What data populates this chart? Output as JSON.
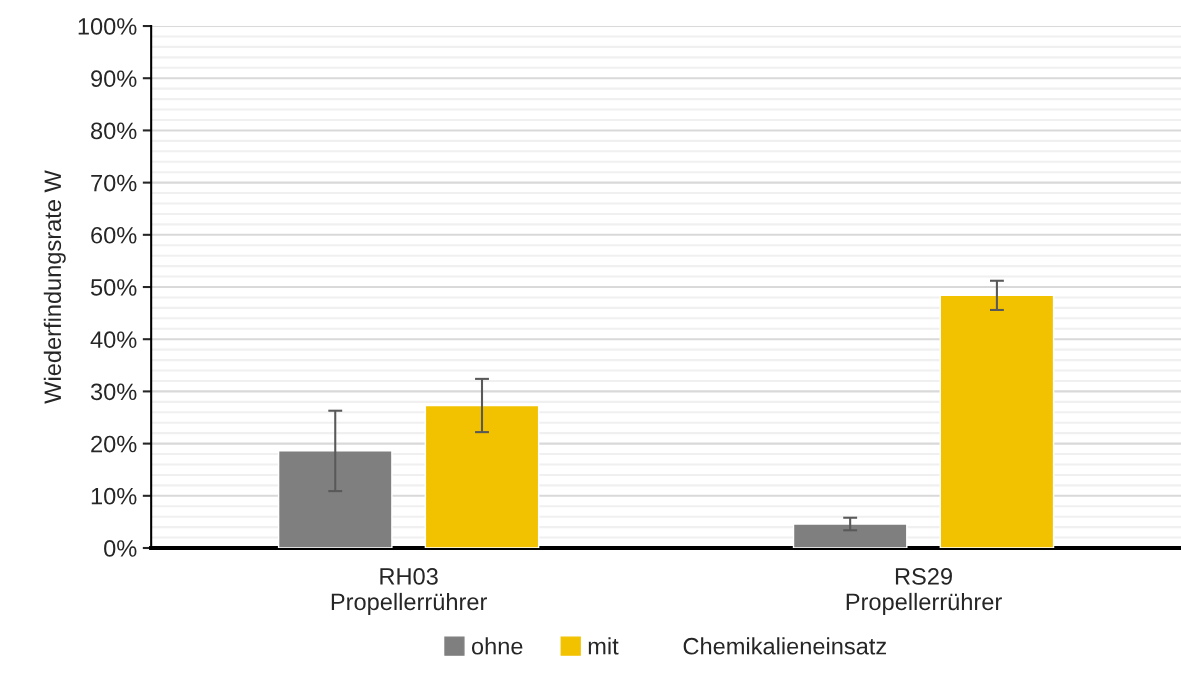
{
  "chart_data": {
    "type": "bar",
    "ylabel": "Wiederfindungsrate W",
    "legend_title": "Chemikalieneinsatz",
    "categories": [
      "RH03\nPropellerrührer",
      "RS29\nPropellerrührer"
    ],
    "series": [
      {
        "name": "ohne",
        "color": "#7f7f7f",
        "values": [
          18.6,
          4.6
        ],
        "errors": [
          7.7,
          1.2
        ]
      },
      {
        "name": "mit",
        "color": "#f2c200",
        "values": [
          27.3,
          48.4
        ],
        "errors": [
          5.1,
          2.8
        ]
      }
    ],
    "ylim": [
      0,
      100
    ],
    "yticks": [
      {
        "value": 0,
        "label": "0%"
      },
      {
        "value": 10,
        "label": "10%"
      },
      {
        "value": 20,
        "label": "20%"
      },
      {
        "value": 30,
        "label": "30%"
      },
      {
        "value": 40,
        "label": "40%"
      },
      {
        "value": 50,
        "label": "50%"
      },
      {
        "value": 60,
        "label": "60%"
      },
      {
        "value": 70,
        "label": "70%"
      },
      {
        "value": 80,
        "label": "80%"
      },
      {
        "value": 90,
        "label": "90%"
      },
      {
        "value": 100,
        "label": "100%"
      }
    ],
    "grid": "y",
    "legend": "bottom"
  }
}
